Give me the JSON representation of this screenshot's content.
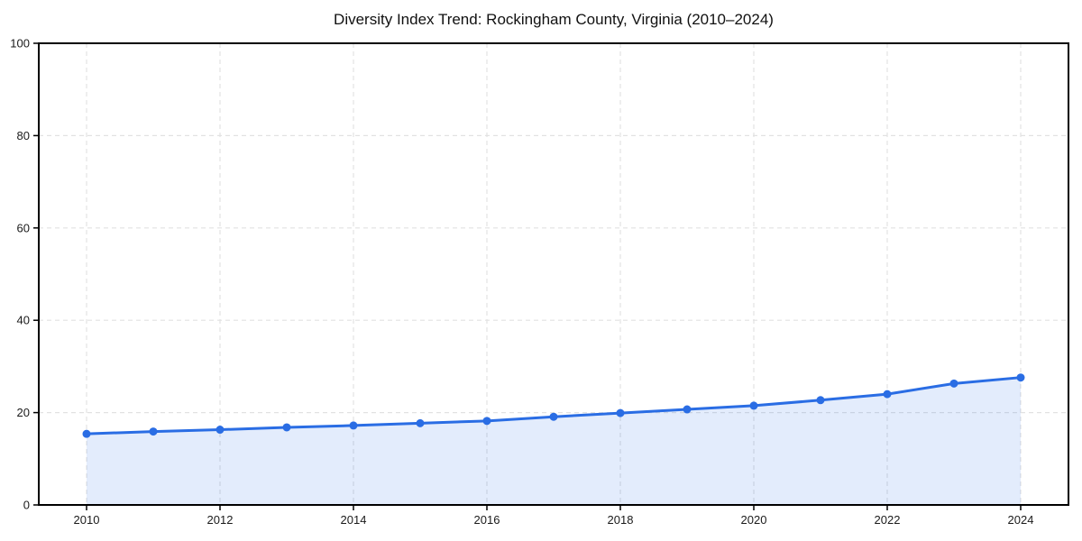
{
  "header": {
    "title": "Diversity Index Trend: Rockingham County, Virginia (2010–2024)"
  },
  "chart_data": {
    "type": "line",
    "area_fill": true,
    "markers": true,
    "title": "Diversity Index Trend: Rockingham County, Virginia (2010–2024)",
    "xlabel": "",
    "ylabel": "",
    "x": [
      2010,
      2011,
      2012,
      2013,
      2014,
      2015,
      2016,
      2017,
      2018,
      2019,
      2020,
      2021,
      2022,
      2023,
      2024
    ],
    "values": [
      15.4,
      15.9,
      16.3,
      16.8,
      17.2,
      17.7,
      18.2,
      19.1,
      19.9,
      20.7,
      21.5,
      22.7,
      24.0,
      26.3,
      27.6
    ],
    "series_name": "Diversity Index",
    "xticks": [
      2010,
      2012,
      2014,
      2016,
      2018,
      2020,
      2022,
      2024
    ],
    "yticks": [
      0,
      20,
      40,
      60,
      80,
      100
    ],
    "ylim": [
      0,
      100
    ],
    "grid": true,
    "grid_style": "dashed",
    "legend_position": "none",
    "colors": {
      "line": "#2a6de4",
      "marker": "#2a6de4",
      "fill": "rgba(42, 109, 228, 0.13)",
      "grid": "#e2e2e2",
      "axis": "#000000",
      "text": "#1a1a1a",
      "background": "#ffffff"
    }
  }
}
